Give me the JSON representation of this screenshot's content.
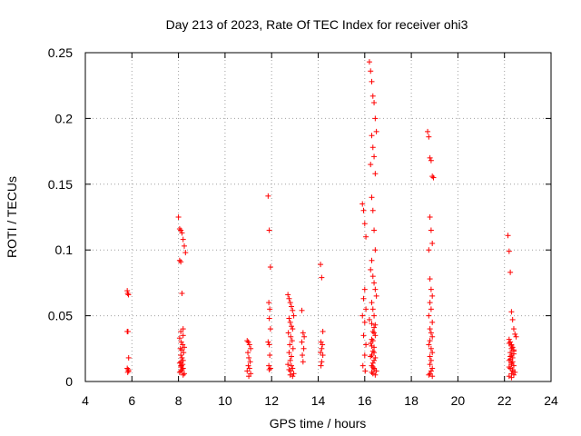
{
  "chart_data": {
    "type": "scatter",
    "title": "Day 213 of 2023, Rate Of TEC Index for receiver ohi3",
    "xlabel": "GPS time / hours",
    "ylabel": "ROTI / TECUs",
    "xlim": [
      4,
      24
    ],
    "ylim": [
      0,
      0.25
    ],
    "xticks": [
      4,
      6,
      8,
      10,
      12,
      14,
      16,
      18,
      20,
      22,
      24
    ],
    "xtick_labels": [
      "4",
      "6",
      "8",
      "10",
      "12",
      "14",
      "16",
      "18",
      "20",
      "22",
      "24"
    ],
    "yticks": [
      0,
      0.05,
      0.1,
      0.15,
      0.2,
      0.25
    ],
    "ytick_labels": [
      "0",
      "0.05",
      "0.1",
      "0.15",
      "0.2",
      "0.25"
    ],
    "grid": true,
    "legend": false,
    "marker": "plus",
    "color": "#ff0000",
    "x": [
      5.8,
      5.82,
      5.85,
      5.8,
      5.83,
      5.86,
      5.8,
      5.84,
      5.82,
      5.86,
      8.0,
      8.05,
      8.1,
      8.15,
      8.2,
      8.25,
      8.3,
      8.05,
      8.1,
      8.15,
      8.2,
      8.1,
      8.2,
      8.05,
      8.12,
      8.18,
      8.25,
      8.08,
      8.14,
      8.22,
      8.1,
      8.15,
      8.2,
      8.1,
      8.05,
      8.18,
      8.12,
      8.1,
      8.2,
      8.15,
      8.1,
      8.05,
      8.25,
      8.2,
      8.12,
      10.95,
      11.0,
      11.05,
      11.1,
      10.98,
      11.02,
      11.08,
      11.0,
      11.05,
      10.95,
      11.1,
      11.02,
      11.85,
      11.9,
      11.95,
      11.88,
      11.92,
      11.9,
      11.95,
      11.85,
      11.9,
      11.92,
      11.88,
      11.95,
      11.9,
      12.7,
      12.75,
      12.8,
      12.85,
      12.9,
      12.95,
      12.75,
      12.8,
      12.85,
      12.9,
      12.72,
      12.82,
      12.88,
      12.78,
      12.92,
      12.75,
      12.85,
      12.8,
      12.7,
      12.9,
      12.82,
      12.95,
      12.8,
      12.85,
      12.75,
      12.9,
      13.3,
      13.35,
      13.4,
      13.3,
      13.38,
      13.32,
      13.35,
      14.1,
      14.15,
      14.2,
      14.12,
      14.18,
      14.15,
      14.1,
      14.2,
      14.15,
      14.12,
      15.9,
      15.95,
      16.0,
      16.05,
      16.0,
      15.95,
      16.05,
      15.9,
      16.0,
      15.95,
      16.05,
      16.0,
      15.92,
      16.02,
      16.2,
      16.25,
      16.3,
      16.35,
      16.4,
      16.45,
      16.5,
      16.3,
      16.35,
      16.4,
      16.25,
      16.45,
      16.3,
      16.35,
      16.4,
      16.45,
      16.3,
      16.25,
      16.35,
      16.4,
      16.45,
      16.5,
      16.3,
      16.35,
      16.4,
      16.2,
      16.3,
      16.4,
      16.35,
      16.45,
      16.3,
      16.25,
      16.4,
      16.35,
      16.3,
      16.45,
      16.4,
      16.35,
      16.3,
      16.4,
      16.5,
      16.3,
      16.35,
      16.45,
      16.4,
      16.25,
      16.3,
      16.35,
      16.4,
      16.45,
      16.35,
      16.4,
      18.7,
      18.75,
      18.8,
      18.85,
      18.9,
      18.95,
      18.8,
      18.85,
      18.9,
      18.75,
      18.8,
      18.85,
      18.9,
      18.8,
      18.85,
      18.75,
      18.9,
      18.8,
      18.85,
      18.9,
      18.8,
      18.75,
      18.85,
      18.9,
      18.8,
      18.85,
      18.8,
      18.9,
      18.85,
      18.8,
      18.75,
      18.9,
      22.15,
      22.2,
      22.25,
      22.3,
      22.35,
      22.4,
      22.45,
      22.5,
      22.2,
      22.25,
      22.3,
      22.35,
      22.4,
      22.25,
      22.3,
      22.35,
      22.2,
      22.3,
      22.4,
      22.25,
      22.35,
      22.3,
      22.4,
      22.2,
      22.3,
      22.35,
      22.25,
      22.4,
      22.3,
      22.2,
      22.35,
      22.45,
      22.3,
      22.25,
      22.4,
      22.3,
      22.2
    ],
    "y": [
      0.069,
      0.067,
      0.066,
      0.038,
      0.038,
      0.018,
      0.01,
      0.009,
      0.007,
      0.008,
      0.125,
      0.116,
      0.115,
      0.113,
      0.108,
      0.103,
      0.098,
      0.092,
      0.091,
      0.067,
      0.04,
      0.038,
      0.035,
      0.033,
      0.03,
      0.028,
      0.026,
      0.025,
      0.024,
      0.022,
      0.02,
      0.018,
      0.016,
      0.015,
      0.014,
      0.013,
      0.012,
      0.011,
      0.01,
      0.009,
      0.008,
      0.007,
      0.006,
      0.005,
      0.012,
      0.031,
      0.03,
      0.028,
      0.025,
      0.022,
      0.018,
      0.015,
      0.012,
      0.01,
      0.008,
      0.006,
      0.004,
      0.141,
      0.115,
      0.087,
      0.06,
      0.055,
      0.048,
      0.04,
      0.03,
      0.028,
      0.02,
      0.012,
      0.01,
      0.009,
      0.066,
      0.063,
      0.06,
      0.057,
      0.054,
      0.05,
      0.048,
      0.045,
      0.042,
      0.04,
      0.037,
      0.034,
      0.031,
      0.028,
      0.025,
      0.022,
      0.019,
      0.016,
      0.013,
      0.01,
      0.008,
      0.006,
      0.005,
      0.012,
      0.009,
      0.004,
      0.054,
      0.037,
      0.034,
      0.03,
      0.025,
      0.02,
      0.015,
      0.089,
      0.079,
      0.038,
      0.03,
      0.028,
      0.025,
      0.022,
      0.02,
      0.015,
      0.012,
      0.135,
      0.13,
      0.12,
      0.11,
      0.07,
      0.063,
      0.055,
      0.05,
      0.045,
      0.035,
      0.028,
      0.02,
      0.012,
      0.008,
      0.243,
      0.236,
      0.228,
      0.217,
      0.212,
      0.2,
      0.19,
      0.187,
      0.178,
      0.171,
      0.165,
      0.158,
      0.14,
      0.13,
      0.115,
      0.1,
      0.092,
      0.085,
      0.08,
      0.075,
      0.07,
      0.065,
      0.06,
      0.055,
      0.05,
      0.047,
      0.044,
      0.041,
      0.038,
      0.035,
      0.032,
      0.029,
      0.026,
      0.023,
      0.02,
      0.018,
      0.016,
      0.014,
      0.012,
      0.01,
      0.008,
      0.007,
      0.006,
      0.005,
      0.022,
      0.019,
      0.027,
      0.031,
      0.037,
      0.043,
      0.011,
      0.009,
      0.19,
      0.186,
      0.17,
      0.168,
      0.156,
      0.155,
      0.125,
      0.115,
      0.105,
      0.1,
      0.078,
      0.07,
      0.065,
      0.06,
      0.055,
      0.05,
      0.045,
      0.04,
      0.037,
      0.034,
      0.031,
      0.028,
      0.025,
      0.022,
      0.019,
      0.016,
      0.013,
      0.01,
      0.008,
      0.006,
      0.005,
      0.004,
      0.111,
      0.099,
      0.083,
      0.053,
      0.047,
      0.04,
      0.036,
      0.034,
      0.032,
      0.03,
      0.028,
      0.026,
      0.024,
      0.022,
      0.02,
      0.018,
      0.016,
      0.014,
      0.012,
      0.01,
      0.008,
      0.006,
      0.005,
      0.004,
      0.003,
      0.015,
      0.019,
      0.023,
      0.027,
      0.011,
      0.009,
      0.007,
      0.013,
      0.017,
      0.021,
      0.025,
      0.029
    ]
  }
}
